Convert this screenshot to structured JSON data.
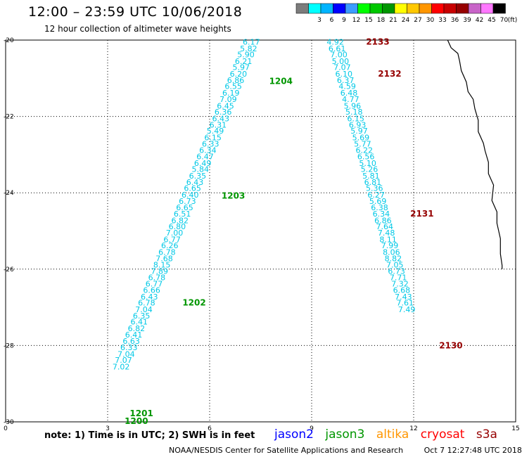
{
  "title": "12:00 – 23:59 UTC 10/06/2018",
  "subtitle": "12 hour collection of altimeter wave heights",
  "color_scale": {
    "unit": "(ft)",
    "bins": [
      {
        "label": "",
        "color": "#7c7c7c"
      },
      {
        "label": "3",
        "color": "#00ffff"
      },
      {
        "label": "6",
        "color": "#00b4ff"
      },
      {
        "label": "9",
        "color": "#0000ff"
      },
      {
        "label": "12",
        "color": "#3c9cff"
      },
      {
        "label": "15",
        "color": "#00ff00"
      },
      {
        "label": "18",
        "color": "#00c800"
      },
      {
        "label": "21",
        "color": "#009600"
      },
      {
        "label": "24",
        "color": "#ffff00"
      },
      {
        "label": "27",
        "color": "#ffc800"
      },
      {
        "label": "30",
        "color": "#ff9600"
      },
      {
        "label": "33",
        "color": "#ff0000"
      },
      {
        "label": "36",
        "color": "#c80000"
      },
      {
        "label": "39",
        "color": "#960000"
      },
      {
        "label": "42",
        "color": "#c864c8"
      },
      {
        "label": "45",
        "color": "#ff78ff"
      },
      {
        "label": "70",
        "color": "#000000"
      }
    ]
  },
  "note": "note:  1) Time is in UTC;  2) SWH is in feet",
  "missions": [
    {
      "name": "jason2",
      "color": "#0000ff"
    },
    {
      "name": "jason3",
      "color": "#009600"
    },
    {
      "name": "altika",
      "color": "#ff9600"
    },
    {
      "name": "cryosat",
      "color": "#ff0000"
    },
    {
      "name": "s3a",
      "color": "#960000"
    }
  ],
  "footer": {
    "source": "NOAA/NESDIS Center for Satellite Applications and Research",
    "timestamp": "Oct  7 12:27:48 UTC 2018"
  },
  "colors": {
    "track_text": "#00c8e6",
    "time_jason3": "#009600",
    "time_s3a": "#960000",
    "grid": "#000000"
  },
  "chart_data": {
    "type": "scatter",
    "xlim": [
      0,
      15
    ],
    "ylim": [
      -30,
      -20
    ],
    "x_ticks": [
      "0",
      "3",
      "6",
      "9",
      "12",
      "15"
    ],
    "y_ticks": [
      "-20",
      "-22",
      "-24",
      "-26",
      "-28",
      "-30"
    ],
    "grid": true,
    "coastline": [
      [
        13.0,
        -20.0
      ],
      [
        13.1,
        -20.2
      ],
      [
        13.3,
        -20.35
      ],
      [
        13.35,
        -20.55
      ],
      [
        13.4,
        -20.8
      ],
      [
        13.55,
        -21.1
      ],
      [
        13.6,
        -21.35
      ],
      [
        13.75,
        -21.55
      ],
      [
        13.8,
        -21.8
      ],
      [
        13.9,
        -22.1
      ],
      [
        13.9,
        -22.4
      ],
      [
        14.05,
        -22.7
      ],
      [
        14.1,
        -22.9
      ],
      [
        14.2,
        -23.2
      ],
      [
        14.2,
        -23.5
      ],
      [
        14.35,
        -23.8
      ],
      [
        14.3,
        -24.2
      ],
      [
        14.45,
        -24.5
      ],
      [
        14.45,
        -24.8
      ],
      [
        14.55,
        -25.2
      ],
      [
        14.55,
        -25.6
      ],
      [
        14.6,
        -25.9
      ],
      [
        14.6,
        -26.0
      ]
    ],
    "series": [
      {
        "name": "jason3",
        "track": [
          {
            "x": 7.48,
            "y": -20.05,
            "value": "6.17"
          },
          {
            "x": 7.4,
            "y": -20.22,
            "value": "5.82"
          },
          {
            "x": 7.32,
            "y": -20.38,
            "value": "5.90"
          },
          {
            "x": 7.25,
            "y": -20.55,
            "value": "6.21"
          },
          {
            "x": 7.18,
            "y": -20.71,
            "value": "5.97"
          },
          {
            "x": 7.1,
            "y": -20.88,
            "value": "6.20"
          },
          {
            "x": 7.02,
            "y": -21.05,
            "value": "6.86"
          },
          {
            "x": 6.95,
            "y": -21.21,
            "value": "6.55"
          },
          {
            "x": 6.88,
            "y": -21.38,
            "value": "6.19"
          },
          {
            "x": 6.8,
            "y": -21.55,
            "value": "7.09"
          },
          {
            "x": 6.72,
            "y": -21.72,
            "value": "6.45"
          },
          {
            "x": 6.65,
            "y": -21.88,
            "value": "6.36"
          },
          {
            "x": 6.58,
            "y": -22.05,
            "value": "6.43"
          },
          {
            "x": 6.5,
            "y": -22.22,
            "value": "6.31"
          },
          {
            "x": 6.42,
            "y": -22.38,
            "value": "5.49"
          },
          {
            "x": 6.35,
            "y": -22.55,
            "value": "6.15"
          },
          {
            "x": 6.28,
            "y": -22.72,
            "value": "6.33"
          },
          {
            "x": 6.2,
            "y": -22.88,
            "value": "6.34"
          },
          {
            "x": 6.12,
            "y": -23.05,
            "value": "6.47"
          },
          {
            "x": 6.05,
            "y": -23.22,
            "value": "6.49"
          },
          {
            "x": 5.98,
            "y": -23.38,
            "value": "5.84"
          },
          {
            "x": 5.9,
            "y": -23.55,
            "value": "6.35"
          },
          {
            "x": 5.82,
            "y": -23.72,
            "value": "6.43"
          },
          {
            "x": 5.75,
            "y": -23.88,
            "value": "6.65"
          },
          {
            "x": 5.68,
            "y": -24.05,
            "value": "6.40"
          },
          {
            "x": 5.6,
            "y": -24.22,
            "value": "6.73"
          },
          {
            "x": 5.52,
            "y": -24.38,
            "value": "6.65"
          },
          {
            "x": 5.45,
            "y": -24.55,
            "value": "6.51"
          },
          {
            "x": 5.38,
            "y": -24.72,
            "value": "6.82"
          },
          {
            "x": 5.3,
            "y": -24.88,
            "value": "6.80"
          },
          {
            "x": 5.22,
            "y": -25.05,
            "value": "7.00"
          },
          {
            "x": 5.15,
            "y": -25.22,
            "value": "6.77"
          },
          {
            "x": 5.08,
            "y": -25.38,
            "value": "6.26"
          },
          {
            "x": 5.0,
            "y": -25.55,
            "value": "6.78"
          },
          {
            "x": 4.92,
            "y": -25.72,
            "value": "7.68"
          },
          {
            "x": 4.85,
            "y": -25.88,
            "value": "8.15"
          },
          {
            "x": 4.78,
            "y": -26.05,
            "value": "7.89"
          },
          {
            "x": 4.7,
            "y": -26.22,
            "value": "6.78"
          },
          {
            "x": 4.62,
            "y": -26.38,
            "value": "6.77"
          },
          {
            "x": 4.55,
            "y": -26.55,
            "value": "6.66"
          },
          {
            "x": 4.48,
            "y": -26.72,
            "value": "6.43"
          },
          {
            "x": 4.4,
            "y": -26.88,
            "value": "6.78"
          },
          {
            "x": 4.32,
            "y": -27.05,
            "value": "7.04"
          },
          {
            "x": 4.25,
            "y": -27.22,
            "value": "6.35"
          },
          {
            "x": 4.18,
            "y": -27.38,
            "value": "6.41"
          },
          {
            "x": 4.1,
            "y": -27.55,
            "value": "6.82"
          },
          {
            "x": 4.02,
            "y": -27.72,
            "value": "6.41"
          },
          {
            "x": 3.95,
            "y": -27.88,
            "value": "6.63"
          },
          {
            "x": 3.88,
            "y": -28.05,
            "value": "6.33"
          },
          {
            "x": 3.8,
            "y": -28.22,
            "value": "7.04"
          },
          {
            "x": 3.72,
            "y": -28.38,
            "value": "7.07"
          },
          {
            "x": 3.65,
            "y": -28.55,
            "value": "7.02"
          }
        ],
        "times": [
          {
            "label": "1204",
            "x": 7.75,
            "y": -21.08
          },
          {
            "label": "1203",
            "x": 6.35,
            "y": -24.08
          },
          {
            "label": "1202",
            "x": 5.2,
            "y": -26.88
          },
          {
            "label": "1201",
            "x": 3.65,
            "y": -29.78
          },
          {
            "label": "1200",
            "x": 3.5,
            "y": -29.98
          }
        ]
      },
      {
        "name": "s3a",
        "track": [
          {
            "x": 9.95,
            "y": -20.05,
            "value": "4.92"
          },
          {
            "x": 10.0,
            "y": -20.22,
            "value": "6.61"
          },
          {
            "x": 10.05,
            "y": -20.38,
            "value": "7.00"
          },
          {
            "x": 10.1,
            "y": -20.55,
            "value": "5.00"
          },
          {
            "x": 10.15,
            "y": -20.71,
            "value": "7.07"
          },
          {
            "x": 10.2,
            "y": -20.88,
            "value": "6.10"
          },
          {
            "x": 10.25,
            "y": -21.05,
            "value": "6.37"
          },
          {
            "x": 10.3,
            "y": -21.21,
            "value": "4.59"
          },
          {
            "x": 10.35,
            "y": -21.38,
            "value": "6.48"
          },
          {
            "x": 10.4,
            "y": -21.55,
            "value": "4.77"
          },
          {
            "x": 10.45,
            "y": -21.72,
            "value": "5.96"
          },
          {
            "x": 10.5,
            "y": -21.88,
            "value": "5.18"
          },
          {
            "x": 10.55,
            "y": -22.05,
            "value": "6.15"
          },
          {
            "x": 10.6,
            "y": -22.22,
            "value": "6.93"
          },
          {
            "x": 10.65,
            "y": -22.38,
            "value": "5.97"
          },
          {
            "x": 10.7,
            "y": -22.55,
            "value": "5.69"
          },
          {
            "x": 10.75,
            "y": -22.72,
            "value": "5.77"
          },
          {
            "x": 10.8,
            "y": -22.88,
            "value": "6.22"
          },
          {
            "x": 10.85,
            "y": -23.05,
            "value": "6.56"
          },
          {
            "x": 10.9,
            "y": -23.22,
            "value": "5.10"
          },
          {
            "x": 10.95,
            "y": -23.38,
            "value": "5.26"
          },
          {
            "x": 11.0,
            "y": -23.55,
            "value": "5.81"
          },
          {
            "x": 11.05,
            "y": -23.72,
            "value": "6.81"
          },
          {
            "x": 11.1,
            "y": -23.88,
            "value": "5.36"
          },
          {
            "x": 11.15,
            "y": -24.05,
            "value": "6.27"
          },
          {
            "x": 11.2,
            "y": -24.22,
            "value": "5.69"
          },
          {
            "x": 11.25,
            "y": -24.38,
            "value": "6.38"
          },
          {
            "x": 11.3,
            "y": -24.55,
            "value": "6.34"
          },
          {
            "x": 11.35,
            "y": -24.72,
            "value": "6.86"
          },
          {
            "x": 11.4,
            "y": -24.88,
            "value": "7.64"
          },
          {
            "x": 11.45,
            "y": -25.05,
            "value": "7.48"
          },
          {
            "x": 11.5,
            "y": -25.22,
            "value": "8.11"
          },
          {
            "x": 11.55,
            "y": -25.38,
            "value": "7.99"
          },
          {
            "x": 11.6,
            "y": -25.55,
            "value": "8.06"
          },
          {
            "x": 11.65,
            "y": -25.72,
            "value": "8.82"
          },
          {
            "x": 11.7,
            "y": -25.88,
            "value": "7.05"
          },
          {
            "x": 11.75,
            "y": -26.05,
            "value": "6.73"
          },
          {
            "x": 11.8,
            "y": -26.22,
            "value": "7.71"
          },
          {
            "x": 11.85,
            "y": -26.38,
            "value": "7.32"
          },
          {
            "x": 11.9,
            "y": -26.55,
            "value": "6.68"
          },
          {
            "x": 11.95,
            "y": -26.72,
            "value": "7.43"
          },
          {
            "x": 12.0,
            "y": -26.88,
            "value": "7.61"
          },
          {
            "x": 12.05,
            "y": -27.05,
            "value": "7.49"
          }
        ],
        "times": [
          {
            "label": "2133",
            "x": 10.6,
            "y": -20.05
          },
          {
            "label": "2132",
            "x": 10.95,
            "y": -20.88
          },
          {
            "label": "2131",
            "x": 11.9,
            "y": -24.55
          },
          {
            "label": "2130",
            "x": 12.75,
            "y": -28.0
          }
        ]
      }
    ]
  }
}
